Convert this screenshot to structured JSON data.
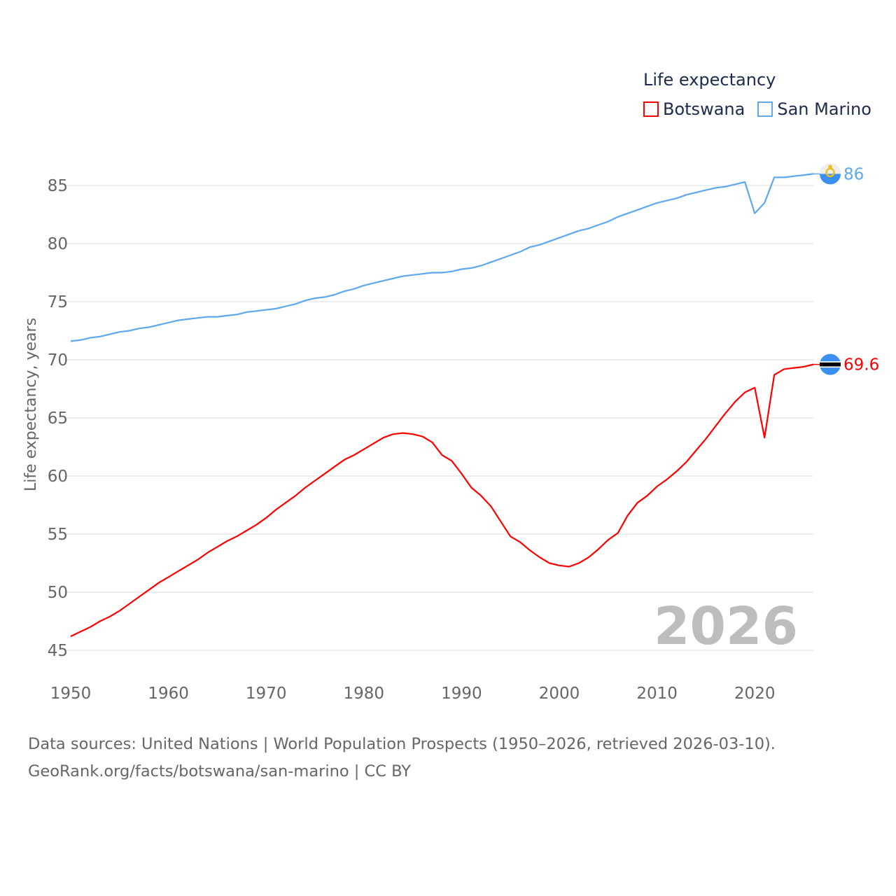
{
  "chart_data": {
    "type": "line",
    "title": "",
    "xlabel": "",
    "ylabel": "Life expectancy, years",
    "xlim": [
      1950,
      2026
    ],
    "ylim": [
      45,
      88
    ],
    "x_ticks": [
      1950,
      1960,
      1970,
      1980,
      1990,
      2000,
      2010,
      2020
    ],
    "y_ticks": [
      45,
      50,
      55,
      60,
      65,
      70,
      75,
      80,
      85
    ],
    "grid": true,
    "legend_title": "Life expectancy",
    "legend_placement": "top-right",
    "current_year_label": "2026",
    "x_start": 1950,
    "series": [
      {
        "name": "Botswana",
        "color": "#ff0000",
        "end_label": "69.6",
        "flag": "botswana-flag-icon",
        "values": [
          46.2,
          46.6,
          47.0,
          47.5,
          47.9,
          48.4,
          49.0,
          49.6,
          50.2,
          50.8,
          51.3,
          51.8,
          52.3,
          52.8,
          53.4,
          53.9,
          54.4,
          54.8,
          55.3,
          55.8,
          56.4,
          57.1,
          57.7,
          58.3,
          59.0,
          59.6,
          60.2,
          60.8,
          61.4,
          61.8,
          62.3,
          62.8,
          63.3,
          63.6,
          63.7,
          63.6,
          63.4,
          62.9,
          61.8,
          61.3,
          60.2,
          59.0,
          58.3,
          57.4,
          56.1,
          54.8,
          54.3,
          53.6,
          53.0,
          52.5,
          52.3,
          52.2,
          52.5,
          53.0,
          53.7,
          54.5,
          55.1,
          56.6,
          57.7,
          58.3,
          59.1,
          59.7,
          60.4,
          61.2,
          62.2,
          63.2,
          64.3,
          65.4,
          66.4,
          67.2,
          67.6,
          63.3,
          68.7,
          69.2,
          69.3,
          69.4,
          69.6
        ]
      },
      {
        "name": "San Marino",
        "color": "#5ea8ee",
        "end_label": "86",
        "flag": "san-marino-flag-icon",
        "values": [
          71.6,
          71.7,
          71.9,
          72.0,
          72.2,
          72.4,
          72.5,
          72.7,
          72.8,
          73.0,
          73.2,
          73.4,
          73.5,
          73.6,
          73.7,
          73.7,
          73.8,
          73.9,
          74.1,
          74.2,
          74.3,
          74.4,
          74.6,
          74.8,
          75.1,
          75.3,
          75.4,
          75.6,
          75.9,
          76.1,
          76.4,
          76.6,
          76.8,
          77.0,
          77.2,
          77.3,
          77.4,
          77.5,
          77.5,
          77.6,
          77.8,
          77.9,
          78.1,
          78.4,
          78.7,
          79.0,
          79.3,
          79.7,
          79.9,
          80.2,
          80.5,
          80.8,
          81.1,
          81.3,
          81.6,
          81.9,
          82.3,
          82.6,
          82.9,
          83.2,
          83.5,
          83.7,
          83.9,
          84.2,
          84.4,
          84.6,
          84.8,
          84.9,
          85.1,
          85.3,
          82.6,
          83.5,
          85.7,
          85.7,
          85.8,
          85.9,
          86.0
        ]
      }
    ],
    "source_line1": "Data sources: United Nations | World Population Prospects (1950–2026, retrieved 2026-03-10).",
    "source_line2": "GeoRank.org/facts/botswana/san-marino | CC BY"
  }
}
